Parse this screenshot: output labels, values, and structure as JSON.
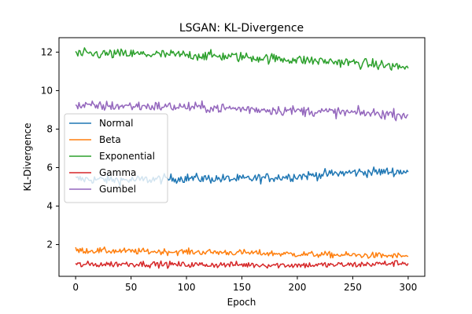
{
  "chart_data": {
    "type": "line",
    "title": "LSGAN: KL-Divergence",
    "xlabel": "Epoch",
    "ylabel": "KL-Divergence",
    "xlim": [
      -15,
      315
    ],
    "ylim": [
      0.35,
      12.75
    ],
    "xticks": [
      0,
      50,
      100,
      150,
      200,
      250,
      300
    ],
    "yticks": [
      2,
      4,
      6,
      8,
      10,
      12
    ],
    "grid": false,
    "legend_position": "center-left",
    "x_points": 301,
    "series": [
      {
        "name": "Normal",
        "color": "#1f77b4",
        "noise": 0.12,
        "anchors": [
          [
            0,
            5.4
          ],
          [
            50,
            5.35
          ],
          [
            100,
            5.45
          ],
          [
            150,
            5.4
          ],
          [
            200,
            5.55
          ],
          [
            250,
            5.75
          ],
          [
            300,
            5.8
          ]
        ]
      },
      {
        "name": "Beta",
        "color": "#ff7f0e",
        "noise": 0.08,
        "anchors": [
          [
            0,
            1.7
          ],
          [
            50,
            1.65
          ],
          [
            100,
            1.62
          ],
          [
            150,
            1.58
          ],
          [
            200,
            1.5
          ],
          [
            250,
            1.45
          ],
          [
            300,
            1.4
          ]
        ]
      },
      {
        "name": "Exponential",
        "color": "#2ca02c",
        "noise": 0.13,
        "anchors": [
          [
            0,
            11.9
          ],
          [
            50,
            11.9
          ],
          [
            100,
            11.85
          ],
          [
            150,
            11.75
          ],
          [
            200,
            11.6
          ],
          [
            250,
            11.45
          ],
          [
            300,
            11.2
          ]
        ]
      },
      {
        "name": "Gamma",
        "color": "#d62728",
        "noise": 0.08,
        "anchors": [
          [
            0,
            0.95
          ],
          [
            50,
            1.0
          ],
          [
            100,
            0.95
          ],
          [
            150,
            0.95
          ],
          [
            200,
            0.93
          ],
          [
            250,
            0.95
          ],
          [
            300,
            1.05
          ]
        ]
      },
      {
        "name": "Gumbel",
        "color": "#9467bd",
        "noise": 0.13,
        "anchors": [
          [
            0,
            9.2
          ],
          [
            50,
            9.2
          ],
          [
            100,
            9.15
          ],
          [
            150,
            9.05
          ],
          [
            200,
            8.95
          ],
          [
            250,
            8.85
          ],
          [
            300,
            8.75
          ]
        ]
      }
    ]
  }
}
